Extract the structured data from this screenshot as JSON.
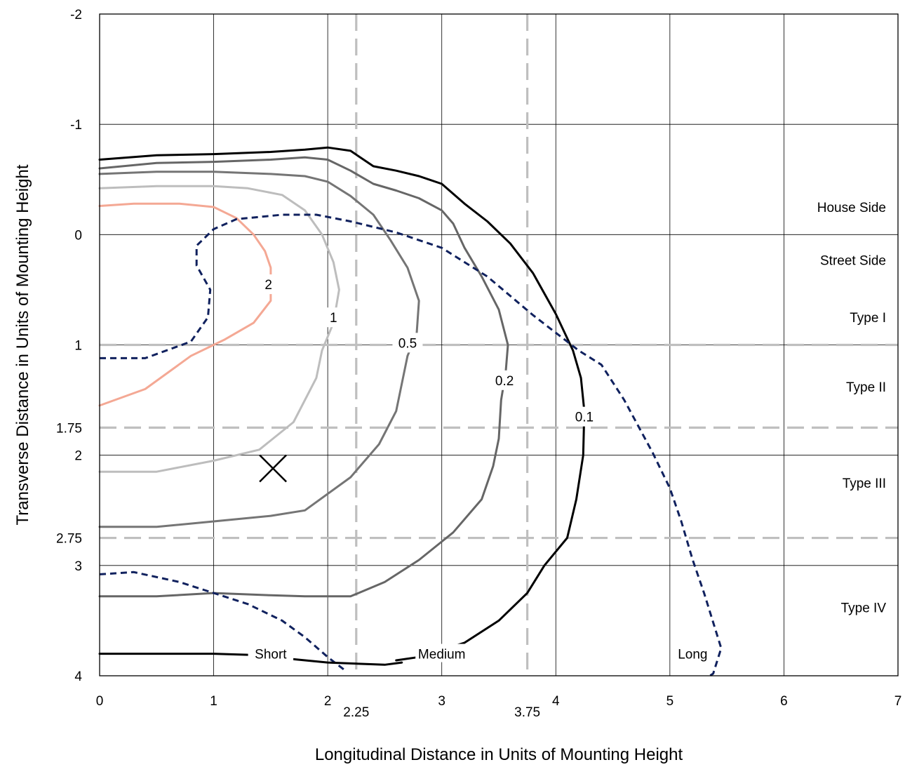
{
  "chart_data": {
    "type": "line",
    "subtype": "isofootcandle-contour",
    "title": "",
    "xlabel": "Longitudinal Distance in Units of Mounting Height",
    "ylabel": "Transverse Distance in Units of Mounting Height",
    "xlim": [
      0,
      7
    ],
    "ylim": [
      -2,
      4
    ],
    "y_inverted": true,
    "grid": true,
    "x_ticks": [
      "0",
      "1",
      "2",
      "3",
      "4",
      "5",
      "6",
      "7"
    ],
    "y_ticks": [
      "-2",
      "-1",
      "0",
      "1",
      "2",
      "3",
      "4"
    ],
    "x_extra_ticks": [
      "2.25",
      "3.75"
    ],
    "y_extra_ticks": [
      "1.75",
      "2.75"
    ],
    "reference_lines": {
      "vertical": [
        2.25,
        3.75
      ],
      "horizontal": [
        1,
        1.75,
        2.75
      ],
      "color": "#bfbfbf",
      "style": "dashed"
    },
    "region_labels": {
      "right": [
        {
          "text": "House Side",
          "y": -0.25
        },
        {
          "text": "Street Side",
          "y": 0.23
        },
        {
          "text": "Type I",
          "y": 0.75
        },
        {
          "text": "Type II",
          "y": 1.38
        },
        {
          "text": "Type III",
          "y": 2.25
        },
        {
          "text": "Type IV",
          "y": 3.38
        }
      ],
      "bottom": [
        {
          "text": "Short",
          "x": 1.5
        },
        {
          "text": "Medium",
          "x": 3.0
        },
        {
          "text": "Long",
          "x": 5.2
        }
      ],
      "bottom_y": 3.8
    },
    "luminaire_marker": {
      "x": 1.52,
      "y": 2.12,
      "symbol": "X"
    },
    "series": [
      {
        "name": "0.1",
        "color": "#000000",
        "label_at": [
          4.25,
          1.65
        ],
        "points": [
          [
            0,
            -0.68
          ],
          [
            0.5,
            -0.72
          ],
          [
            1,
            -0.73
          ],
          [
            1.5,
            -0.75
          ],
          [
            1.8,
            -0.77
          ],
          [
            2.0,
            -0.79
          ],
          [
            2.2,
            -0.76
          ],
          [
            2.4,
            -0.62
          ],
          [
            2.6,
            -0.58
          ],
          [
            2.8,
            -0.53
          ],
          [
            3.0,
            -0.46
          ],
          [
            3.2,
            -0.28
          ],
          [
            3.4,
            -0.12
          ],
          [
            3.6,
            0.08
          ],
          [
            3.8,
            0.35
          ],
          [
            4.0,
            0.72
          ],
          [
            4.15,
            1.05
          ],
          [
            4.22,
            1.3
          ],
          [
            4.25,
            1.6
          ],
          [
            4.24,
            2.0
          ],
          [
            4.18,
            2.4
          ],
          [
            4.1,
            2.75
          ],
          [
            3.9,
            3.0
          ],
          [
            3.75,
            3.25
          ],
          [
            3.5,
            3.5
          ],
          [
            3.2,
            3.7
          ],
          [
            2.8,
            3.83
          ],
          [
            2.6,
            3.86
          ]
        ]
      },
      {
        "name": "0.2",
        "color": "#666666",
        "label_at": [
          3.55,
          1.32
        ],
        "points": [
          [
            0,
            -0.6
          ],
          [
            0.5,
            -0.65
          ],
          [
            1,
            -0.66
          ],
          [
            1.5,
            -0.68
          ],
          [
            1.8,
            -0.7
          ],
          [
            2.0,
            -0.68
          ],
          [
            2.2,
            -0.58
          ],
          [
            2.4,
            -0.46
          ],
          [
            2.6,
            -0.4
          ],
          [
            2.8,
            -0.33
          ],
          [
            3.0,
            -0.22
          ],
          [
            3.1,
            -0.1
          ],
          [
            3.2,
            0.12
          ],
          [
            3.35,
            0.38
          ],
          [
            3.5,
            0.68
          ],
          [
            3.58,
            1.0
          ],
          [
            3.56,
            1.25
          ],
          [
            3.52,
            1.5
          ],
          [
            3.5,
            1.85
          ],
          [
            3.45,
            2.1
          ],
          [
            3.35,
            2.4
          ],
          [
            3.1,
            2.7
          ],
          [
            2.8,
            2.95
          ],
          [
            2.5,
            3.15
          ],
          [
            2.2,
            3.28
          ],
          [
            1.8,
            3.28
          ],
          [
            1.5,
            3.27
          ],
          [
            1.0,
            3.25
          ],
          [
            0.5,
            3.28
          ],
          [
            0,
            3.28
          ]
        ]
      },
      {
        "name": "0.5",
        "color": "#757575",
        "label_at": [
          2.7,
          0.98
        ],
        "points": [
          [
            0,
            -0.55
          ],
          [
            0.5,
            -0.57
          ],
          [
            1,
            -0.57
          ],
          [
            1.5,
            -0.55
          ],
          [
            1.8,
            -0.53
          ],
          [
            2.0,
            -0.48
          ],
          [
            2.2,
            -0.35
          ],
          [
            2.4,
            -0.18
          ],
          [
            2.55,
            0.05
          ],
          [
            2.7,
            0.3
          ],
          [
            2.8,
            0.6
          ],
          [
            2.78,
            0.9
          ],
          [
            2.7,
            1.1
          ],
          [
            2.65,
            1.35
          ],
          [
            2.6,
            1.6
          ],
          [
            2.45,
            1.9
          ],
          [
            2.2,
            2.2
          ],
          [
            1.8,
            2.5
          ],
          [
            1.5,
            2.55
          ],
          [
            1.0,
            2.6
          ],
          [
            0.5,
            2.65
          ],
          [
            0,
            2.65
          ]
        ]
      },
      {
        "name": "1",
        "color": "#bdbdbd",
        "label_at": [
          2.05,
          0.75
        ],
        "points": [
          [
            0,
            -0.42
          ],
          [
            0.5,
            -0.44
          ],
          [
            1,
            -0.44
          ],
          [
            1.3,
            -0.42
          ],
          [
            1.6,
            -0.36
          ],
          [
            1.8,
            -0.22
          ],
          [
            1.95,
            0.0
          ],
          [
            2.05,
            0.25
          ],
          [
            2.1,
            0.5
          ],
          [
            2.05,
            0.8
          ],
          [
            1.95,
            1.05
          ],
          [
            1.9,
            1.3
          ],
          [
            1.7,
            1.7
          ],
          [
            1.4,
            1.95
          ],
          [
            1.0,
            2.05
          ],
          [
            0.5,
            2.15
          ],
          [
            0,
            2.15
          ]
        ]
      },
      {
        "name": "2",
        "color": "#f4a894",
        "label_at": [
          1.48,
          0.45
        ],
        "points": [
          [
            0,
            -0.26
          ],
          [
            0.3,
            -0.28
          ],
          [
            0.7,
            -0.28
          ],
          [
            1.0,
            -0.25
          ],
          [
            1.2,
            -0.15
          ],
          [
            1.35,
            0.0
          ],
          [
            1.45,
            0.15
          ],
          [
            1.5,
            0.3
          ],
          [
            1.5,
            0.6
          ],
          [
            1.35,
            0.8
          ],
          [
            1.1,
            0.95
          ],
          [
            0.8,
            1.1
          ],
          [
            0.4,
            1.4
          ],
          [
            0,
            1.55
          ]
        ]
      },
      {
        "name": "half-maximum candlepower trace",
        "color": "#10215e",
        "dashed": true,
        "points": [
          [
            0,
            1.12
          ],
          [
            0.4,
            1.12
          ],
          [
            0.8,
            0.97
          ],
          [
            0.95,
            0.75
          ],
          [
            0.97,
            0.5
          ],
          [
            0.85,
            0.28
          ],
          [
            0.85,
            0.1
          ],
          [
            1.0,
            -0.05
          ],
          [
            1.2,
            -0.14
          ],
          [
            1.6,
            -0.18
          ],
          [
            1.9,
            -0.18
          ],
          [
            2.2,
            -0.12
          ],
          [
            2.6,
            -0.02
          ],
          [
            3.0,
            0.12
          ],
          [
            3.4,
            0.38
          ],
          [
            3.8,
            0.73
          ],
          [
            4.2,
            1.05
          ],
          [
            4.4,
            1.18
          ],
          [
            4.6,
            1.5
          ],
          [
            4.85,
            1.98
          ],
          [
            5.0,
            2.3
          ],
          [
            5.1,
            2.6
          ],
          [
            5.2,
            2.95
          ],
          [
            5.3,
            3.25
          ],
          [
            5.45,
            3.75
          ],
          [
            5.38,
            3.98
          ],
          [
            5.35,
            4.0
          ]
        ]
      },
      {
        "name": "street-side lower trace",
        "color": "#10215e",
        "dashed": true,
        "points": [
          [
            0,
            3.08
          ],
          [
            0.3,
            3.06
          ],
          [
            0.7,
            3.15
          ],
          [
            1.0,
            3.25
          ],
          [
            1.3,
            3.35
          ],
          [
            1.6,
            3.5
          ],
          [
            1.8,
            3.65
          ],
          [
            2.0,
            3.83
          ],
          [
            2.15,
            3.95
          ]
        ]
      },
      {
        "name": "street-side bottom contour",
        "color": "#000000",
        "points": [
          [
            0,
            3.8
          ],
          [
            0.5,
            3.8
          ],
          [
            1.0,
            3.8
          ],
          [
            1.3,
            3.81
          ],
          [
            1.7,
            3.85
          ],
          [
            2.0,
            3.88
          ],
          [
            2.5,
            3.9
          ],
          [
            2.65,
            3.88
          ]
        ]
      }
    ]
  }
}
